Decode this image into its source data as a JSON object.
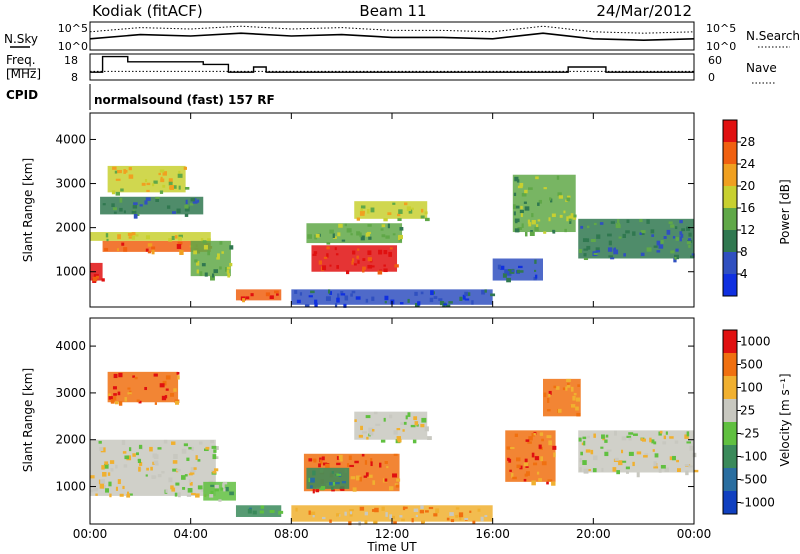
{
  "header": {
    "station": "Kodiak (fitACF)",
    "beam": "Beam 11",
    "date": "24/Mar/2012"
  },
  "params": {
    "left_top_label": "N.Sky",
    "left_mid_label_1": "Freq.",
    "left_mid_label_2": "[MHz]",
    "cpid_label": "CPID",
    "right_top_label": "N.Search",
    "right_mid_label": "Nave",
    "top_left_ticks": [
      "10^5",
      "10^0"
    ],
    "top_right_ticks": [
      "10^5",
      "10^0"
    ],
    "freq_ticks": [
      "18",
      "8"
    ],
    "nave_ticks": [
      "60",
      "0"
    ],
    "cpid_text": "normalsound (fast) 157 RF"
  },
  "axes": {
    "xlabel": "Time UT",
    "ylabel": "Slant Range [km]",
    "x_ticks": [
      "00:00",
      "04:00",
      "08:00",
      "12:00",
      "16:00",
      "20:00",
      "00:00"
    ],
    "y_ticks": [
      "1000",
      "2000",
      "3000",
      "4000"
    ]
  },
  "colorbars": {
    "power": {
      "label": "Power [dB]",
      "ticks": [
        "4",
        "8",
        "12",
        "16",
        "20",
        "24",
        "28"
      ],
      "colors": [
        "#1030e0",
        "#3050c0",
        "#307850",
        "#60a848",
        "#c8d030",
        "#f0a020",
        "#f06010",
        "#e01010"
      ]
    },
    "velocity": {
      "label": "Velocity [m s⁻¹]",
      "ticks": [
        "1000",
        "500",
        "100",
        "25",
        "-25",
        "-100",
        "-500",
        "-1000"
      ],
      "colors": [
        "#1040c0",
        "#2a6ea0",
        "#3a8a5a",
        "#60c040",
        "#c8c8c0",
        "#f0b030",
        "#f07010",
        "#e01010"
      ]
    }
  },
  "chart_data": {
    "type": "heatmap",
    "x_axis": "Time UT (hours)",
    "xlim": [
      0,
      24
    ],
    "ylim": [
      200,
      4600
    ],
    "power_regions": [
      {
        "t0": 0.0,
        "t1": 0.5,
        "r0": 800,
        "r1": 1200,
        "level": 7
      },
      {
        "t0": 0.5,
        "t1": 4.8,
        "r0": 1450,
        "r1": 1700,
        "level": 6
      },
      {
        "t0": 0.0,
        "t1": 4.8,
        "r0": 1700,
        "r1": 1900,
        "level": 4
      },
      {
        "t0": 0.7,
        "t1": 3.8,
        "r0": 2800,
        "r1": 3400,
        "level": 4
      },
      {
        "t0": 0.4,
        "t1": 4.5,
        "r0": 2300,
        "r1": 2700,
        "level": 2
      },
      {
        "t0": 4.0,
        "t1": 5.6,
        "r0": 900,
        "r1": 1700,
        "level": 3
      },
      {
        "t0": 5.8,
        "t1": 7.6,
        "r0": 350,
        "r1": 600,
        "level": 6
      },
      {
        "t0": 8.8,
        "t1": 12.2,
        "r0": 1000,
        "r1": 1600,
        "level": 7
      },
      {
        "t0": 8.6,
        "t1": 12.4,
        "r0": 1650,
        "r1": 2100,
        "level": 3
      },
      {
        "t0": 10.5,
        "t1": 13.4,
        "r0": 2200,
        "r1": 2600,
        "level": 4
      },
      {
        "t0": 16.8,
        "t1": 19.3,
        "r0": 1900,
        "r1": 3200,
        "level": 3
      },
      {
        "t0": 19.4,
        "t1": 24.0,
        "r0": 1300,
        "r1": 2200,
        "level": 2
      },
      {
        "t0": 16.0,
        "t1": 18.0,
        "r0": 800,
        "r1": 1300,
        "level": 1
      },
      {
        "t0": 8.0,
        "t1": 16.0,
        "r0": 250,
        "r1": 600,
        "level": 1
      }
    ],
    "velocity_regions": [
      {
        "t0": 0.7,
        "t1": 3.5,
        "r0": 2800,
        "r1": 3450,
        "level": 6
      },
      {
        "t0": 0.0,
        "t1": 5.0,
        "r0": 800,
        "r1": 2000,
        "level": 4
      },
      {
        "t0": 4.5,
        "t1": 5.8,
        "r0": 700,
        "r1": 1100,
        "level": 3
      },
      {
        "t0": 5.8,
        "t1": 7.6,
        "r0": 350,
        "r1": 600,
        "level": 2
      },
      {
        "t0": 8.5,
        "t1": 12.3,
        "r0": 900,
        "r1": 1700,
        "level": 6
      },
      {
        "t0": 8.6,
        "t1": 10.3,
        "r0": 950,
        "r1": 1400,
        "level": 2
      },
      {
        "t0": 10.5,
        "t1": 13.4,
        "r0": 2000,
        "r1": 2600,
        "level": 4
      },
      {
        "t0": 16.5,
        "t1": 18.5,
        "r0": 1100,
        "r1": 2200,
        "level": 6
      },
      {
        "t0": 18.0,
        "t1": 19.5,
        "r0": 2500,
        "r1": 3300,
        "level": 6
      },
      {
        "t0": 19.4,
        "t1": 24.0,
        "r0": 1300,
        "r1": 2200,
        "level": 4
      },
      {
        "t0": 8.0,
        "t1": 16.0,
        "r0": 250,
        "r1": 600,
        "level": 5
      }
    ],
    "nsky_series": [
      {
        "t": 0,
        "v": 0.4
      },
      {
        "t": 2,
        "v": 0.55
      },
      {
        "t": 4,
        "v": 0.5
      },
      {
        "t": 6,
        "v": 0.6
      },
      {
        "t": 8,
        "v": 0.5
      },
      {
        "t": 10,
        "v": 0.55
      },
      {
        "t": 12,
        "v": 0.45
      },
      {
        "t": 14,
        "v": 0.45
      },
      {
        "t": 16,
        "v": 0.4
      },
      {
        "t": 18,
        "v": 0.6
      },
      {
        "t": 20,
        "v": 0.4
      },
      {
        "t": 22,
        "v": 0.35
      },
      {
        "t": 24,
        "v": 0.4
      }
    ],
    "freq_series": [
      {
        "t": 0,
        "v": 11
      },
      {
        "t": 0.5,
        "v": 11
      },
      {
        "t": 0.5,
        "v": 17
      },
      {
        "t": 1.5,
        "v": 17
      },
      {
        "t": 1.5,
        "v": 15
      },
      {
        "t": 4.5,
        "v": 15
      },
      {
        "t": 4.5,
        "v": 14
      },
      {
        "t": 5.5,
        "v": 14
      },
      {
        "t": 5.5,
        "v": 11
      },
      {
        "t": 6.5,
        "v": 11
      },
      {
        "t": 6.5,
        "v": 13
      },
      {
        "t": 7,
        "v": 13
      },
      {
        "t": 7,
        "v": 11
      },
      {
        "t": 19,
        "v": 11
      },
      {
        "t": 19,
        "v": 13
      },
      {
        "t": 20.5,
        "v": 13
      },
      {
        "t": 20.5,
        "v": 11
      },
      {
        "t": 24,
        "v": 11
      }
    ],
    "nave_level": 20
  }
}
